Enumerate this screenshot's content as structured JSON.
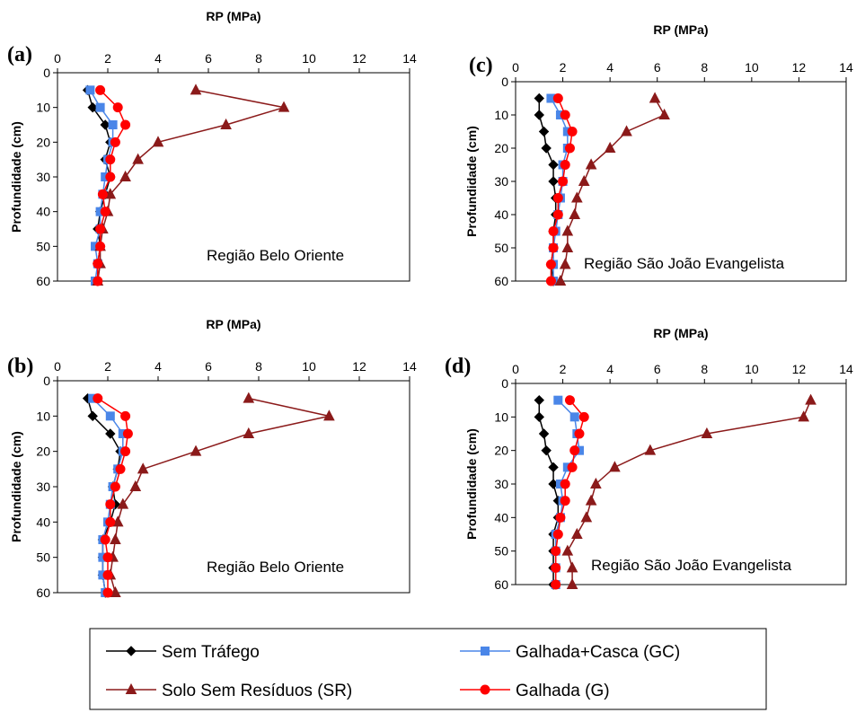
{
  "legend": {
    "items": [
      {
        "key": "st",
        "label": "Sem Tráfego",
        "color": "#000000",
        "marker": "diamond"
      },
      {
        "key": "gc",
        "label": "Galhada+Casca (GC)",
        "color": "#4a86e8",
        "marker": "square"
      },
      {
        "key": "sr",
        "label": "Solo Sem Resíduos (SR)",
        "color": "#8b1a1a",
        "marker": "triangle"
      },
      {
        "key": "g",
        "label": "Galhada (G)",
        "color": "#ff0000",
        "marker": "circle"
      }
    ]
  },
  "chart_data": [
    {
      "panel": "(a)",
      "type": "line",
      "xlabel": "RP (MPa)",
      "ylabel": "Profundidade (cm)",
      "annotation": "Região Belo Oriente",
      "xlim": [
        0,
        14
      ],
      "ylim": [
        0,
        60
      ],
      "xticks": [
        0,
        2,
        4,
        6,
        8,
        10,
        12,
        14
      ],
      "yticks": [
        0,
        10,
        20,
        30,
        40,
        50,
        60
      ],
      "series": [
        {
          "name": "Sem Tráfego",
          "key": "st",
          "x": [
            1.2,
            1.4,
            1.9,
            2.1,
            1.9,
            2.1,
            1.9,
            1.7,
            1.6,
            1.7,
            1.6,
            1.6
          ],
          "y": [
            5,
            10,
            15,
            20,
            25,
            30,
            35,
            40,
            45,
            50,
            55,
            60
          ]
        },
        {
          "name": "Galhada+Casca (GC)",
          "key": "gc",
          "x": [
            1.3,
            1.7,
            2.2,
            2.2,
            2.0,
            1.9,
            1.8,
            1.7,
            1.7,
            1.5,
            1.6,
            1.5
          ],
          "y": [
            5,
            10,
            15,
            20,
            25,
            30,
            35,
            40,
            45,
            50,
            55,
            60
          ]
        },
        {
          "name": "Solo Sem Resíduos (SR)",
          "key": "sr",
          "x": [
            5.5,
            9.0,
            6.7,
            4.0,
            3.2,
            2.7,
            2.1,
            2.0,
            1.8,
            1.7,
            1.7,
            1.6
          ],
          "y": [
            5,
            10,
            15,
            20,
            25,
            30,
            35,
            40,
            45,
            50,
            55,
            60
          ]
        },
        {
          "name": "Galhada (G)",
          "key": "g",
          "x": [
            1.7,
            2.4,
            2.7,
            2.3,
            2.1,
            2.1,
            1.8,
            1.9,
            1.7,
            1.7,
            1.6,
            1.6
          ],
          "y": [
            5,
            10,
            15,
            20,
            25,
            30,
            35,
            40,
            45,
            50,
            55,
            60
          ]
        }
      ]
    },
    {
      "panel": "(c)",
      "type": "line",
      "xlabel": "RP (MPa)",
      "ylabel": "Profundidade (cm)",
      "annotation": "Região São João Evangelista",
      "xlim": [
        0,
        14
      ],
      "ylim": [
        0,
        60
      ],
      "xticks": [
        0,
        2,
        4,
        6,
        8,
        10,
        12,
        14
      ],
      "yticks": [
        0,
        10,
        20,
        30,
        40,
        50,
        60
      ],
      "series": [
        {
          "name": "Sem Tráfego",
          "key": "st",
          "x": [
            1.0,
            1.0,
            1.2,
            1.3,
            1.6,
            1.6,
            1.7,
            1.7,
            1.6,
            1.6,
            1.5,
            1.6
          ],
          "y": [
            5,
            10,
            15,
            20,
            25,
            30,
            35,
            40,
            45,
            50,
            55,
            60
          ]
        },
        {
          "name": "Galhada+Casca (GC)",
          "key": "gc",
          "x": [
            1.5,
            1.9,
            2.2,
            2.2,
            2.0,
            2.0,
            1.9,
            1.8,
            1.7,
            1.6,
            1.6,
            1.6
          ],
          "y": [
            5,
            10,
            15,
            20,
            25,
            30,
            35,
            40,
            45,
            50,
            55,
            60
          ]
        },
        {
          "name": "Solo Sem Resíduos (SR)",
          "key": "sr",
          "x": [
            5.9,
            6.3,
            4.7,
            4.0,
            3.2,
            2.9,
            2.6,
            2.5,
            2.2,
            2.2,
            2.1,
            1.9
          ],
          "y": [
            5,
            10,
            15,
            20,
            25,
            30,
            35,
            40,
            45,
            50,
            55,
            60
          ]
        },
        {
          "name": "Galhada (G)",
          "key": "g",
          "x": [
            1.8,
            2.1,
            2.4,
            2.3,
            2.1,
            2.0,
            1.8,
            1.8,
            1.6,
            1.6,
            1.5,
            1.5
          ],
          "y": [
            5,
            10,
            15,
            20,
            25,
            30,
            35,
            40,
            45,
            50,
            55,
            60
          ]
        }
      ]
    },
    {
      "panel": "(b)",
      "type": "line",
      "xlabel": "RP (MPa)",
      "ylabel": "Profundidade (cm)",
      "annotation": "Região Belo Oriente",
      "xlim": [
        0,
        14
      ],
      "ylim": [
        0,
        60
      ],
      "xticks": [
        0,
        2,
        4,
        6,
        8,
        10,
        12,
        14
      ],
      "yticks": [
        0,
        10,
        20,
        30,
        40,
        50,
        60
      ],
      "series": [
        {
          "name": "Sem Tráfego",
          "key": "st",
          "x": [
            1.2,
            1.4,
            2.1,
            2.5,
            2.4,
            2.2,
            2.3,
            2.1,
            1.8,
            1.8,
            1.8,
            1.9
          ],
          "y": [
            5,
            10,
            15,
            20,
            25,
            30,
            35,
            40,
            45,
            50,
            55,
            60
          ]
        },
        {
          "name": "Galhada+Casca (GC)",
          "key": "gc",
          "x": [
            1.4,
            2.1,
            2.6,
            2.6,
            2.4,
            2.2,
            2.1,
            2.0,
            1.8,
            1.8,
            1.8,
            1.9
          ],
          "y": [
            5,
            10,
            15,
            20,
            25,
            30,
            35,
            40,
            45,
            50,
            55,
            60
          ]
        },
        {
          "name": "Solo Sem Resíduos (SR)",
          "key": "sr",
          "x": [
            7.6,
            10.8,
            7.6,
            5.5,
            3.4,
            3.1,
            2.6,
            2.4,
            2.3,
            2.2,
            2.1,
            2.3
          ],
          "y": [
            5,
            10,
            15,
            20,
            25,
            30,
            35,
            40,
            45,
            50,
            55,
            60
          ]
        },
        {
          "name": "Galhada (G)",
          "key": "g",
          "x": [
            1.6,
            2.7,
            2.8,
            2.7,
            2.5,
            2.3,
            2.1,
            2.1,
            1.9,
            2.0,
            2.0,
            2.0
          ],
          "y": [
            5,
            10,
            15,
            20,
            25,
            30,
            35,
            40,
            45,
            50,
            55,
            60
          ]
        }
      ]
    },
    {
      "panel": "(d)",
      "type": "line",
      "xlabel": "RP (MPa)",
      "ylabel": "Profundidade (cm)",
      "annotation": "Região São João Evangelista",
      "xlim": [
        0,
        14
      ],
      "ylim": [
        0,
        60
      ],
      "xticks": [
        0,
        2,
        4,
        6,
        8,
        10,
        12,
        14
      ],
      "yticks": [
        0,
        10,
        20,
        30,
        40,
        50,
        60
      ],
      "series": [
        {
          "name": "Sem Tráfego",
          "key": "st",
          "x": [
            1.0,
            1.0,
            1.2,
            1.3,
            1.6,
            1.6,
            1.8,
            1.8,
            1.6,
            1.6,
            1.6,
            1.6
          ],
          "y": [
            5,
            10,
            15,
            20,
            25,
            30,
            35,
            40,
            45,
            50,
            55,
            60
          ]
        },
        {
          "name": "Galhada+Casca (GC)",
          "key": "gc",
          "x": [
            1.8,
            2.5,
            2.6,
            2.7,
            2.2,
            1.9,
            2.0,
            1.9,
            1.7,
            1.7,
            1.7,
            1.7
          ],
          "y": [
            5,
            10,
            15,
            20,
            25,
            30,
            35,
            40,
            45,
            50,
            55,
            60
          ]
        },
        {
          "name": "Solo Sem Resíduos (SR)",
          "key": "sr",
          "x": [
            12.5,
            12.2,
            8.1,
            5.7,
            4.2,
            3.4,
            3.2,
            3.0,
            2.6,
            2.2,
            2.4,
            2.4
          ],
          "y": [
            5,
            10,
            15,
            20,
            25,
            30,
            35,
            40,
            45,
            50,
            55,
            60
          ]
        },
        {
          "name": "Galhada (G)",
          "key": "g",
          "x": [
            2.3,
            2.9,
            2.7,
            2.5,
            2.4,
            2.1,
            2.1,
            1.9,
            1.8,
            1.7,
            1.7,
            1.7
          ],
          "y": [
            5,
            10,
            15,
            20,
            25,
            30,
            35,
            40,
            45,
            50,
            55,
            60
          ]
        }
      ]
    }
  ]
}
